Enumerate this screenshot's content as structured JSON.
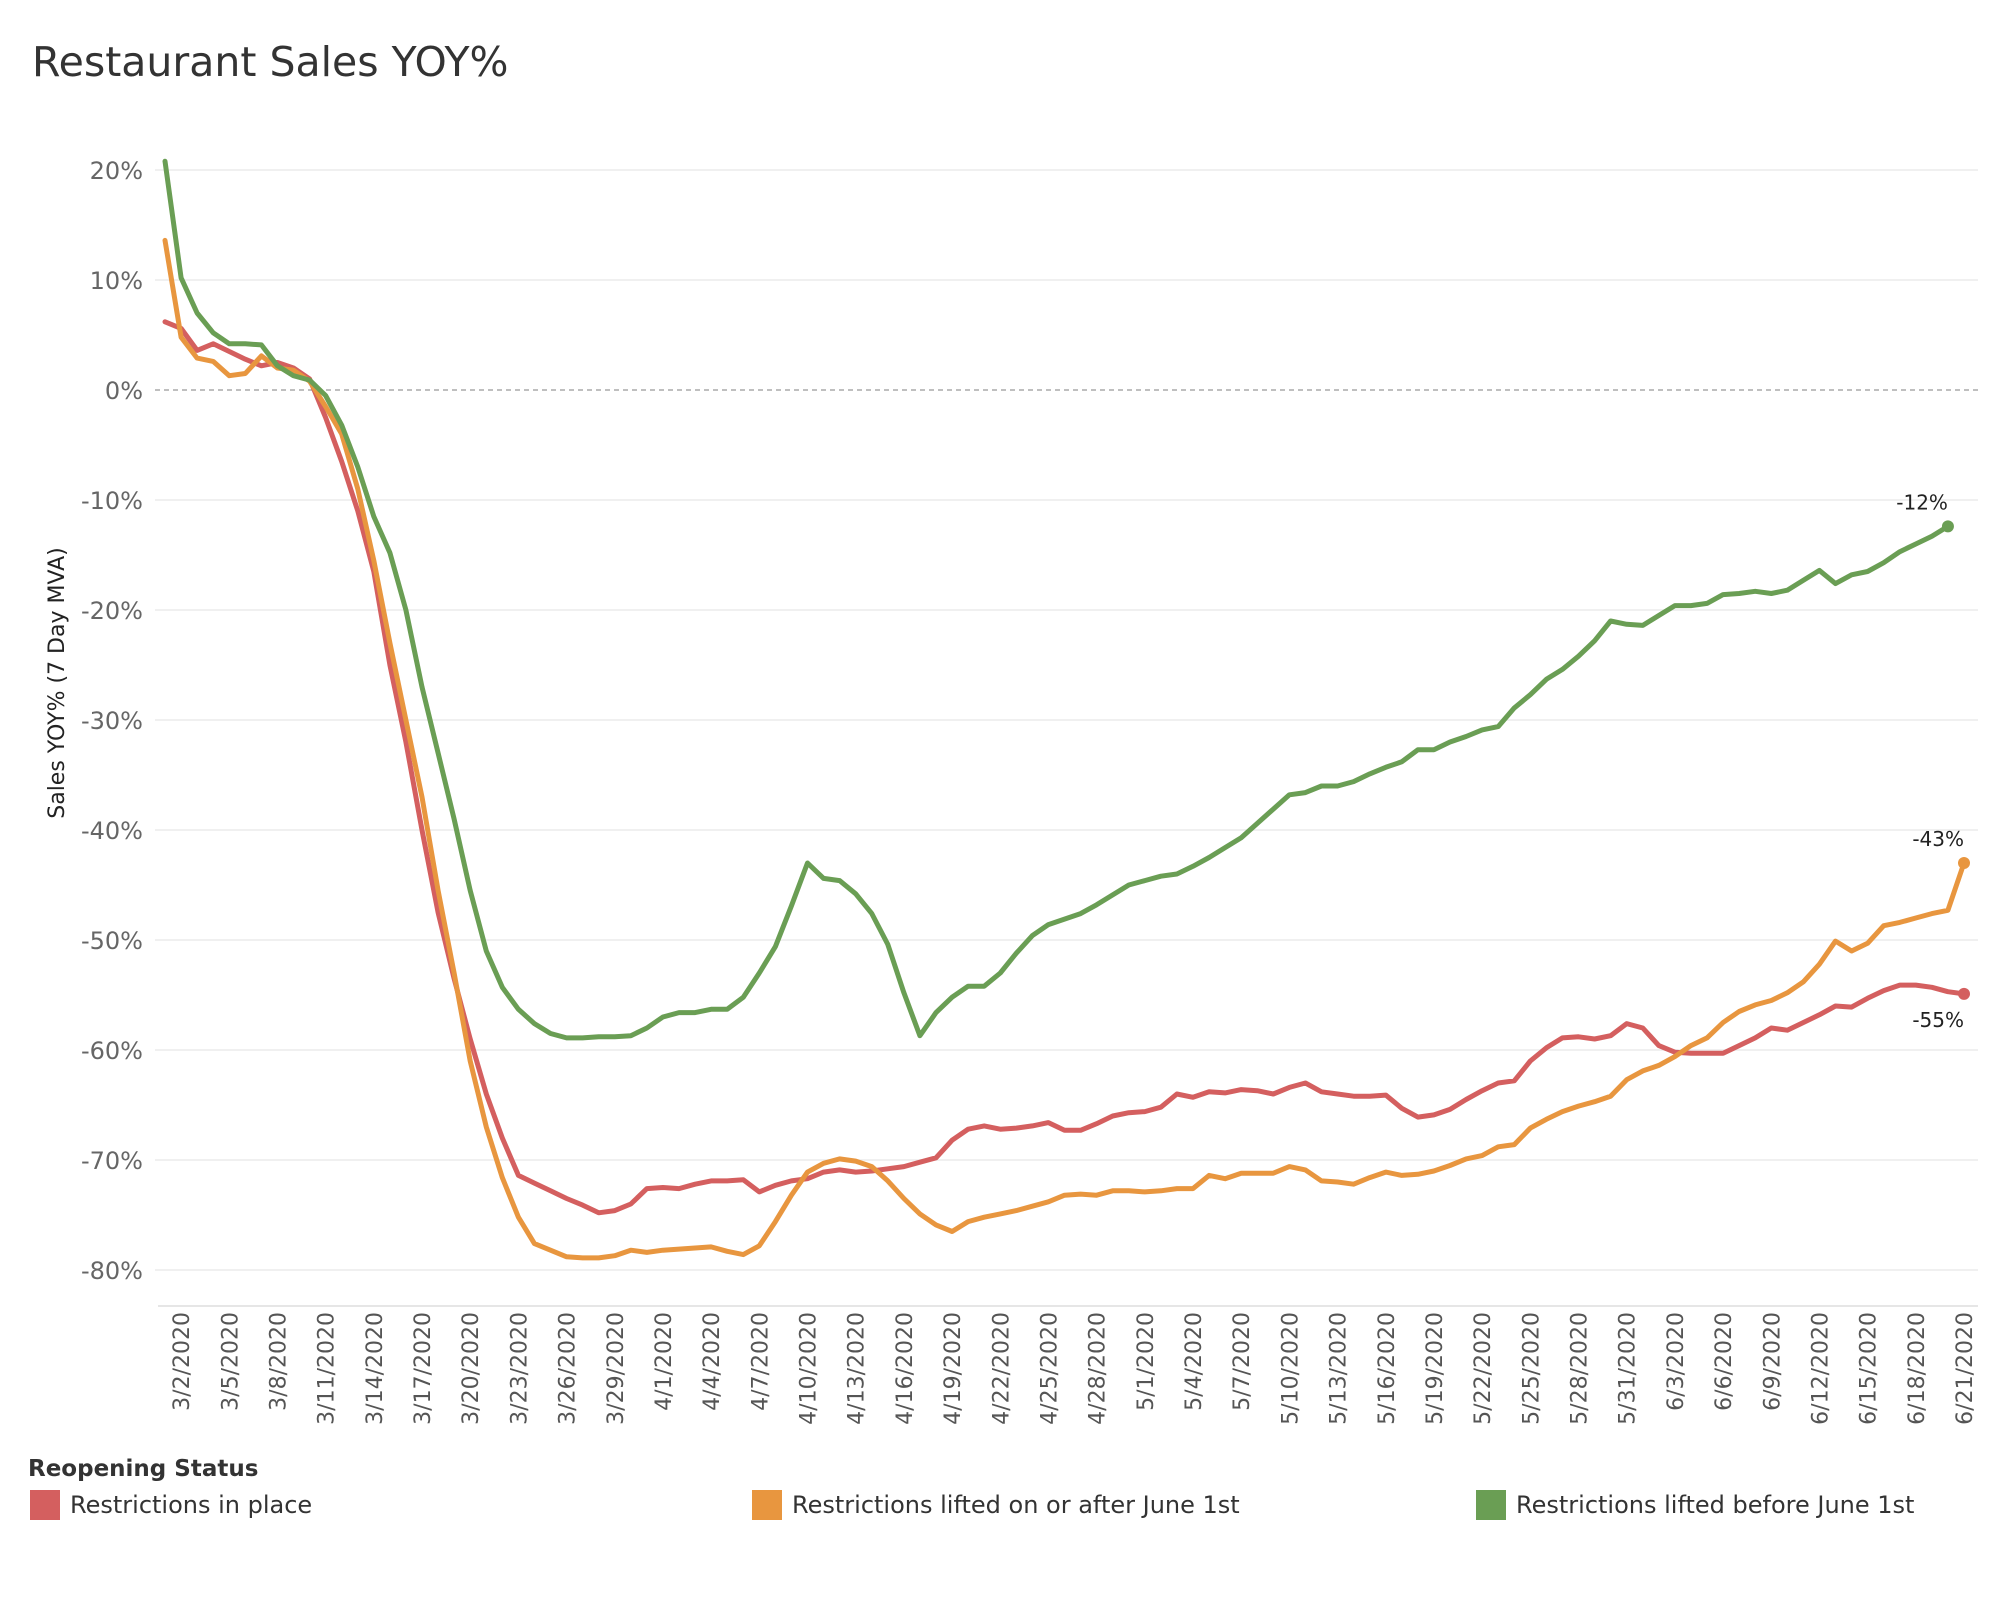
{
  "chart_data": {
    "type": "line",
    "title": "Restaurant Sales YOY%",
    "ylabel": "Sales YOY% (7 Day MVA)",
    "xlabel": "",
    "ylim": [
      -80,
      20
    ],
    "y_ticks": [
      "20%",
      "10%",
      "0%",
      "-10%",
      "-20%",
      "-30%",
      "-40%",
      "-50%",
      "-60%",
      "-70%",
      "-80%"
    ],
    "y_tick_values": [
      20,
      10,
      0,
      -10,
      -20,
      -30,
      -40,
      -50,
      -60,
      -70,
      -80
    ],
    "x_start_date": "3/1/2020",
    "x_ticks": [
      "3/2/2020",
      "3/5/2020",
      "3/8/2020",
      "3/11/2020",
      "3/14/2020",
      "3/17/2020",
      "3/20/2020",
      "3/23/2020",
      "3/26/2020",
      "3/29/2020",
      "4/1/2020",
      "4/4/2020",
      "4/7/2020",
      "4/10/2020",
      "4/13/2020",
      "4/16/2020",
      "4/19/2020",
      "4/22/2020",
      "4/25/2020",
      "4/28/2020",
      "5/1/2020",
      "5/4/2020",
      "5/7/2020",
      "5/10/2020",
      "5/13/2020",
      "5/16/2020",
      "5/19/2020",
      "5/22/2020",
      "5/25/2020",
      "5/28/2020",
      "5/31/2020",
      "6/3/2020",
      "6/6/2020",
      "6/9/2020",
      "6/12/2020",
      "6/15/2020",
      "6/18/2020",
      "6/21/2020"
    ],
    "grid": true,
    "zero_line": true,
    "legend": {
      "title": "Reopening Status",
      "placement": "bottom"
    },
    "series": [
      {
        "name": "Restrictions in place",
        "color": "#d45f5f",
        "end_label": "-55%",
        "values": [
          6.2,
          5.6,
          3.6,
          4.2,
          3.5,
          2.8,
          2.2,
          2.5,
          2.0,
          1.0,
          -2.5,
          -6.5,
          -11,
          -16.5,
          -25,
          -32,
          -40,
          -47.5,
          -53.5,
          -59,
          -64,
          -68,
          -71.4,
          -72.1,
          -72.8,
          -73.5,
          -74.1,
          -74.8,
          -74.6,
          -74.0,
          -72.6,
          -72.5,
          -72.6,
          -72.2,
          -71.9,
          -71.9,
          -71.8,
          -72.9,
          -72.3,
          -71.9,
          -71.7,
          -71.1,
          -70.9,
          -71.1,
          -71.0,
          -70.8,
          -70.6,
          -70.2,
          -69.8,
          -68.2,
          -67.2,
          -66.9,
          -67.2,
          -67.1,
          -66.9,
          -66.6,
          -67.3,
          -67.3,
          -66.7,
          -66.0,
          -65.7,
          -65.6,
          -65.2,
          -64.0,
          -64.3,
          -63.8,
          -63.9,
          -63.6,
          -63.7,
          -64.0,
          -63.4,
          -63.0,
          -63.8,
          -64.0,
          -64.2,
          -64.2,
          -64.1,
          -65.3,
          -66.1,
          -65.9,
          -65.4,
          -64.5,
          -63.7,
          -63.0,
          -62.8,
          -61.0,
          -59.8,
          -58.9,
          -58.8,
          -59.0,
          -58.7,
          -57.6,
          -58.0,
          -59.6,
          -60.2,
          -60.3,
          -60.3,
          -60.3,
          -59.6,
          -58.9,
          -58.0,
          -58.2,
          -57.5,
          -56.8,
          -56.0,
          -56.1,
          -55.3,
          -54.6,
          -54.1,
          -54.1,
          -54.3,
          -54.7,
          -54.9
        ]
      },
      {
        "name": "Restrictions lifted on or after June 1st",
        "color": "#e8963f",
        "end_label": "-43%",
        "values": [
          13.6,
          4.8,
          2.9,
          2.6,
          1.3,
          1.5,
          3.1,
          2.0,
          1.8,
          0.8,
          -1.5,
          -4,
          -9,
          -15.5,
          -23,
          -30,
          -37,
          -45.5,
          -53,
          -61,
          -67,
          -71.6,
          -75.2,
          -77.6,
          -78.2,
          -78.8,
          -78.9,
          -78.9,
          -78.7,
          -78.2,
          -78.4,
          -78.2,
          -78.1,
          -78.0,
          -77.9,
          -78.3,
          -78.6,
          -77.8,
          -75.6,
          -73.2,
          -71.1,
          -70.3,
          -69.9,
          -70.1,
          -70.6,
          -71.9,
          -73.5,
          -74.9,
          -75.9,
          -76.5,
          -75.6,
          -75.2,
          -74.9,
          -74.6,
          -74.2,
          -73.8,
          -73.2,
          -73.1,
          -73.2,
          -72.8,
          -72.8,
          -72.9,
          -72.8,
          -72.6,
          -72.6,
          -71.4,
          -71.7,
          -71.2,
          -71.2,
          -71.2,
          -70.6,
          -70.9,
          -71.9,
          -72.0,
          -72.2,
          -71.6,
          -71.1,
          -71.4,
          -71.3,
          -71.0,
          -70.5,
          -69.9,
          -69.6,
          -68.8,
          -68.6,
          -67.1,
          -66.3,
          -65.6,
          -65.1,
          -64.7,
          -64.2,
          -62.7,
          -61.9,
          -61.4,
          -60.6,
          -59.6,
          -58.9,
          -57.5,
          -56.5,
          -55.9,
          -55.5,
          -54.8,
          -53.8,
          -52.2,
          -50.1,
          -51.0,
          -50.3,
          -48.7,
          -48.4,
          -48.0,
          -47.6,
          -47.3,
          -43.0
        ]
      },
      {
        "name": "Restrictions lifted before June 1st",
        "color": "#6a9e54",
        "end_label": "-12%",
        "values": [
          20.8,
          10.2,
          7.0,
          5.2,
          4.2,
          4.2,
          4.1,
          2.2,
          1.3,
          0.9,
          -0.5,
          -3.2,
          -7,
          -11.5,
          -14.8,
          -20,
          -27,
          -33,
          -39,
          -45.5,
          -51,
          -54.3,
          -56.3,
          -57.6,
          -58.5,
          -58.9,
          -58.9,
          -58.8,
          -58.8,
          -58.7,
          -58.0,
          -57.0,
          -56.6,
          -56.6,
          -56.3,
          -56.3,
          -55.2,
          -53.0,
          -50.6,
          -46.9,
          -43.0,
          -44.4,
          -44.6,
          -45.8,
          -47.6,
          -50.4,
          -54.8,
          -58.7,
          -56.6,
          -55.2,
          -54.2,
          -54.2,
          -53.0,
          -51.2,
          -49.6,
          -48.6,
          -48.1,
          -47.6,
          -46.8,
          -45.9,
          -45.0,
          -44.6,
          -44.2,
          -44.0,
          -43.3,
          -42.5,
          -41.6,
          -40.7,
          -39.4,
          -38.1,
          -36.8,
          -36.6,
          -36.0,
          -36.0,
          -35.6,
          -34.9,
          -34.3,
          -33.8,
          -32.7,
          -32.7,
          -32.0,
          -31.5,
          -30.9,
          -30.6,
          -28.9,
          -27.7,
          -26.3,
          -25.4,
          -24.2,
          -22.8,
          -21.0,
          -21.3,
          -21.4,
          -20.5,
          -19.6,
          -19.6,
          -19.4,
          -18.6,
          -18.5,
          -18.3,
          -18.5,
          -18.2,
          -17.3,
          -16.4,
          -17.6,
          -16.8,
          -16.5,
          -15.7,
          -14.7,
          -14.0,
          -13.3,
          -12.4
        ]
      }
    ]
  }
}
